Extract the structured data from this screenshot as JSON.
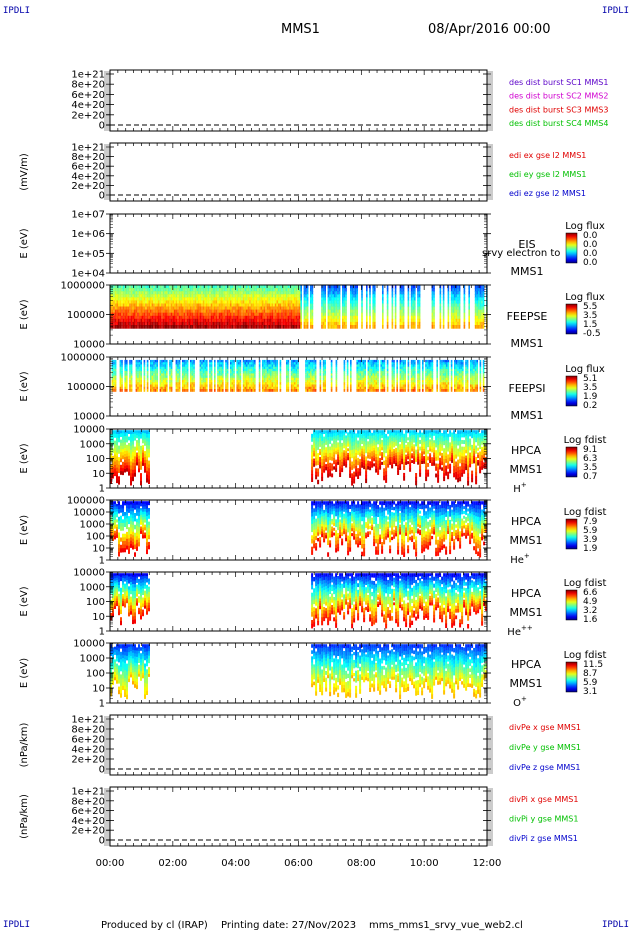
{
  "header": {
    "spacecraft": "MMS1",
    "date": "08/Apr/2016 00:00"
  },
  "corner_label": "IPDLI",
  "footer": {
    "produced": "Produced by cl (IRAP)",
    "printing": "Printing date: 27/Nov/2023",
    "script": "mms_mms1_srvy_vue_web2.cl"
  },
  "colors": {
    "black": "#000000",
    "red": "#e00000",
    "magenta": "#d000d0",
    "green": "#00c000",
    "blue": "#0000cc",
    "purple": "#5a00c8",
    "corner": "#0000aa"
  },
  "chart_data": {
    "type": "line",
    "x_ticks": [
      "00:00",
      "02:00",
      "04:00",
      "06:00",
      "08:00",
      "10:00",
      "12:00"
    ],
    "x_range_hours": [
      0,
      12
    ],
    "panels": [
      {
        "id": "des",
        "type": "line",
        "ylabel": "",
        "yticks": [
          "1e+21",
          "8e+20",
          "6e+20",
          "4e+20",
          "2e+20",
          "0"
        ],
        "ylim": [
          0,
          1.1e+21
        ],
        "series": [
          {
            "name": "des dist burst SC1 MMS1",
            "color": "#5a00c8",
            "values": []
          },
          {
            "name": "des dist burst SC2 MMS2",
            "color": "#d000d0",
            "values": []
          },
          {
            "name": "des dist burst SC3 MMS3",
            "color": "#e00000",
            "values": []
          },
          {
            "name": "des dist burst SC4 MMS4",
            "color": "#00c000",
            "values": []
          }
        ]
      },
      {
        "id": "edi",
        "type": "line",
        "ylabel": "(mV/m)",
        "yticks": [
          "1e+21",
          "8e+20",
          "6e+20",
          "4e+20",
          "2e+20",
          "0"
        ],
        "ylim": [
          0,
          1.1e+21
        ],
        "series": [
          {
            "name": "edi ex gse l2 MMS1",
            "color": "#e00000",
            "values": []
          },
          {
            "name": "edi ey gse l2 MMS1",
            "color": "#00c000",
            "values": []
          },
          {
            "name": "edi ez gse l2 MMS1",
            "color": "#0000cc",
            "values": []
          }
        ]
      },
      {
        "id": "eis",
        "type": "heatmap",
        "ylabel": "E (eV)",
        "yticks": [
          "1e+07",
          "1e+06",
          "1e+05",
          "1e+04"
        ],
        "labels": [
          "EIS",
          "MMS1"
        ],
        "overlay": "srvy electron to",
        "colorbar": {
          "title": "Log flux",
          "ticks": [
            "0.0",
            "0.0",
            "0.0",
            "0.0"
          ]
        }
      },
      {
        "id": "feepse",
        "type": "heatmap",
        "ylabel": "E (eV)",
        "yticks": [
          "1000000",
          "100000",
          "10000"
        ],
        "labels": [
          "FEEPSE",
          "MMS1"
        ],
        "colorbar": {
          "title": "Log flux",
          "ticks": [
            "5.5",
            "3.5",
            "1.5",
            "-0.5"
          ]
        },
        "coverage_hours": [
          [
            0,
            12
          ]
        ]
      },
      {
        "id": "feepsi",
        "type": "heatmap",
        "ylabel": "E (eV)",
        "yticks": [
          "1000000",
          "100000",
          "10000"
        ],
        "labels": [
          "FEEPSI",
          "MMS1"
        ],
        "colorbar": {
          "title": "Log flux",
          "ticks": [
            "5.1",
            "3.5",
            "1.9",
            "0.2"
          ]
        },
        "coverage_hours": [
          [
            0,
            12
          ]
        ]
      },
      {
        "id": "hpca_h",
        "type": "heatmap",
        "ylabel": "E (eV)",
        "yticks": [
          "10000",
          "1000",
          "100",
          "10",
          "1"
        ],
        "labels": [
          "HPCA",
          "MMS1",
          "H",
          "+"
        ],
        "colorbar": {
          "title": "Log fdist",
          "ticks": [
            "9.1",
            "6.3",
            "3.5",
            "0.7"
          ]
        },
        "coverage_hours": [
          [
            0,
            1.25
          ],
          [
            6.4,
            12
          ]
        ]
      },
      {
        "id": "hpca_he",
        "type": "heatmap",
        "ylabel": "E (eV)",
        "yticks": [
          "100000",
          "10000",
          "1000",
          "100",
          "10",
          "1"
        ],
        "labels": [
          "HPCA",
          "MMS1",
          "He",
          "+"
        ],
        "colorbar": {
          "title": "Log fdist",
          "ticks": [
            "7.9",
            "5.9",
            "3.9",
            "1.9"
          ]
        },
        "coverage_hours": [
          [
            0,
            1.25
          ],
          [
            6.4,
            12
          ]
        ]
      },
      {
        "id": "hpca_he2",
        "type": "heatmap",
        "ylabel": "E (eV)",
        "yticks": [
          "10000",
          "1000",
          "100",
          "10",
          "1"
        ],
        "labels": [
          "HPCA",
          "MMS1",
          "He",
          "++"
        ],
        "colorbar": {
          "title": "Log fdist",
          "ticks": [
            "6.6",
            "4.9",
            "3.2",
            "1.6"
          ]
        },
        "coverage_hours": [
          [
            0,
            1.25
          ],
          [
            6.4,
            12
          ]
        ]
      },
      {
        "id": "hpca_o",
        "type": "heatmap",
        "ylabel": "E (eV)",
        "yticks": [
          "10000",
          "1000",
          "100",
          "10",
          "1"
        ],
        "labels": [
          "HPCA",
          "MMS1",
          "O",
          "+"
        ],
        "colorbar": {
          "title": "Log fdist",
          "ticks": [
            "11.5",
            "8.7",
            "5.9",
            "3.1"
          ]
        },
        "coverage_hours": [
          [
            0,
            1.25
          ],
          [
            6.4,
            12
          ]
        ]
      },
      {
        "id": "divpe",
        "type": "line",
        "ylabel": "(nPa/km)",
        "yticks": [
          "1e+21",
          "8e+20",
          "6e+20",
          "4e+20",
          "2e+20",
          "0"
        ],
        "ylim": [
          0,
          1.1e+21
        ],
        "series": [
          {
            "name": "divPe x gse MMS1",
            "color": "#e00000",
            "values": []
          },
          {
            "name": "divPe y gse MMS1",
            "color": "#00c000",
            "values": []
          },
          {
            "name": "divPe z gse MMS1",
            "color": "#0000cc",
            "values": []
          }
        ]
      },
      {
        "id": "divpi",
        "type": "line",
        "ylabel": "(nPa/km)",
        "yticks": [
          "1e+21",
          "8e+20",
          "6e+20",
          "4e+20",
          "2e+20",
          "0"
        ],
        "ylim": [
          0,
          1.1e+21
        ],
        "series": [
          {
            "name": "divPi x gse MMS1",
            "color": "#e00000",
            "values": []
          },
          {
            "name": "divPi y gse MMS1",
            "color": "#00c000",
            "values": []
          },
          {
            "name": "divPi z gse MMS1",
            "color": "#0000cc",
            "values": []
          }
        ]
      }
    ]
  }
}
